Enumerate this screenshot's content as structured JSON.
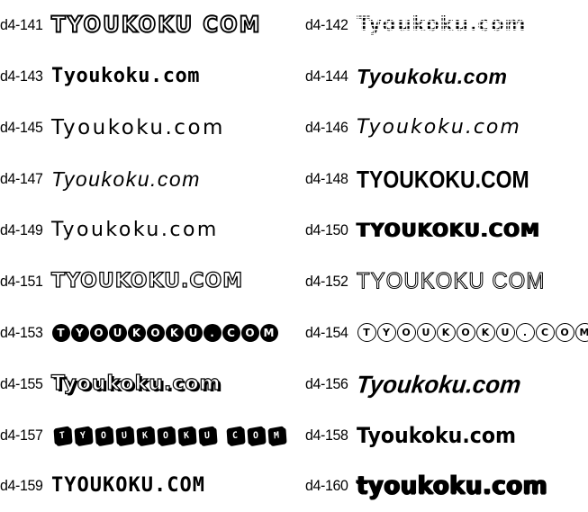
{
  "page": {
    "background": "#ffffff",
    "text_color": "#000000",
    "description": "Font specimen catalog sheet, two columns of numbered samples"
  },
  "specimens": [
    {
      "id": "d4-141",
      "label": "d4-141",
      "sample": "TYOUKOKU COM",
      "style": "inline-outline caps"
    },
    {
      "id": "d4-142",
      "label": "d4-142",
      "sample": "Tyoukoku.com",
      "style": "mosaic tile"
    },
    {
      "id": "d4-143",
      "label": "d4-143",
      "sample": "Tyoukoku.com",
      "style": "octagonal tech"
    },
    {
      "id": "d4-144",
      "label": "d4-144",
      "sample": "Tyoukoku.com",
      "style": "bold italic"
    },
    {
      "id": "d4-145",
      "label": "d4-145",
      "sample": "Tyoukoku.com",
      "style": "mirrored round lowercase"
    },
    {
      "id": "d4-146",
      "label": "d4-146",
      "sample": "Tyoukoku.com",
      "style": "mirrored round italic"
    },
    {
      "id": "d4-147",
      "label": "d4-147",
      "sample": "Tyoukoku.com",
      "style": "thin rounded italic"
    },
    {
      "id": "d4-148",
      "label": "d4-148",
      "sample": "TYOUKOKU.COM",
      "style": "square tech caps"
    },
    {
      "id": "d4-149",
      "label": "d4-149",
      "sample": "Tyoukoku.com",
      "style": "wide rounded"
    },
    {
      "id": "d4-150",
      "label": "d4-150",
      "sample": "TYOUKOKU.COM",
      "style": "heavy block caps"
    },
    {
      "id": "d4-151",
      "label": "d4-151",
      "sample": "TYOUKOKU.COM",
      "style": "bubble outline caps"
    },
    {
      "id": "d4-152",
      "label": "d4-152",
      "sample": "TYOUKOKU COM",
      "style": "thin outline caps"
    },
    {
      "id": "d4-153",
      "label": "d4-153",
      "sample": "TYOUKOKU.COM",
      "style": "white-on-black circle badges"
    },
    {
      "id": "d4-154",
      "label": "d4-154",
      "sample": "TYOUKOKU.COM",
      "style": "black-on-white circle badges"
    },
    {
      "id": "d4-155",
      "label": "d4-155",
      "sample": "Tyoukoku.com",
      "style": "3d bubble outline"
    },
    {
      "id": "d4-156",
      "label": "d4-156",
      "sample": "Tyoukoku.com",
      "style": "heavy brush italic"
    },
    {
      "id": "d4-157",
      "label": "d4-157",
      "sample": "TYOUKOKU COM",
      "style": "3d cube blocks"
    },
    {
      "id": "d4-158",
      "label": "d4-158",
      "sample": "Tyoukoku.com",
      "style": "bold condensed"
    },
    {
      "id": "d4-159",
      "label": "d4-159",
      "sample": "TYOUKOKU.COM",
      "style": "angular stencil caps"
    },
    {
      "id": "d4-160",
      "label": "d4-160",
      "sample": "tyoukoku.com",
      "style": "heavy round lowercase"
    }
  ]
}
